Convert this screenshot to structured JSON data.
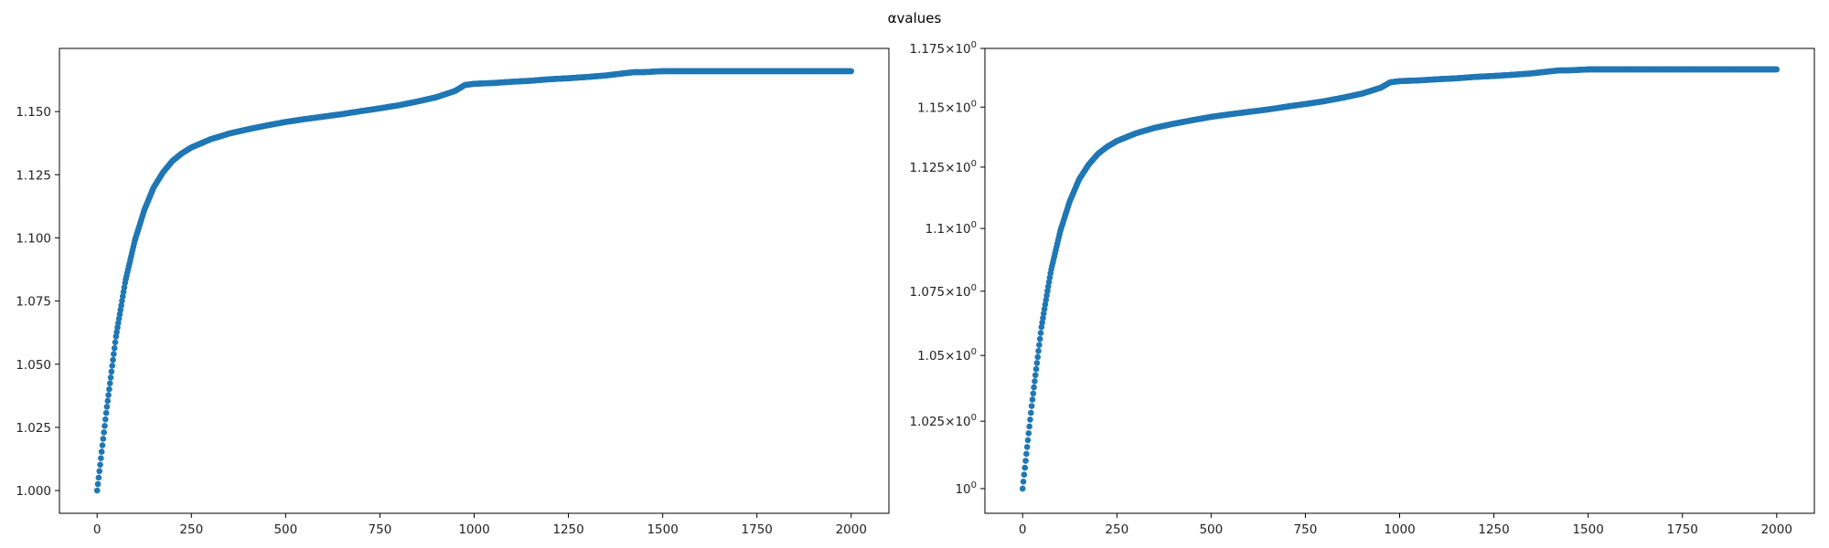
{
  "figure": {
    "title": "αvalues"
  },
  "chart_data": [
    {
      "type": "scatter",
      "title": "",
      "xlabel": "",
      "ylabel": "",
      "xscale": "linear",
      "yscale": "linear",
      "xlim": [
        -100,
        2100
      ],
      "ylim": [
        0.991,
        1.175
      ],
      "x_ticks": [
        0,
        250,
        500,
        750,
        1000,
        1250,
        1500,
        1750,
        2000
      ],
      "x_tick_labels": [
        "0",
        "250",
        "500",
        "750",
        "1000",
        "1250",
        "1500",
        "1750",
        "2000"
      ],
      "y_ticks": [
        1.0,
        1.025,
        1.05,
        1.075,
        1.1,
        1.125,
        1.15
      ],
      "y_tick_labels": [
        "1.000",
        "1.025",
        "1.050",
        "1.075",
        "1.100",
        "1.125",
        "1.150"
      ],
      "grid": false,
      "legend": "none",
      "color": "#1f77b4",
      "series": [
        {
          "x": [
            0,
            25,
            50,
            75,
            100,
            125,
            150,
            175,
            200,
            225,
            250,
            300,
            350,
            400,
            450,
            500,
            550,
            600,
            650,
            700,
            750,
            800,
            850,
            900,
            950,
            975,
            1000,
            1050,
            1100,
            1150,
            1200,
            1250,
            1300,
            1350,
            1400,
            1425,
            1450,
            1500,
            1550,
            1600,
            1700,
            1800,
            1900,
            2000
          ],
          "y": [
            1.0,
            1.032,
            1.061,
            1.083,
            1.099,
            1.111,
            1.12,
            1.126,
            1.1305,
            1.1335,
            1.1358,
            1.139,
            1.1413,
            1.143,
            1.1445,
            1.1459,
            1.147,
            1.148,
            1.149,
            1.1502,
            1.1513,
            1.1525,
            1.154,
            1.1557,
            1.1582,
            1.1605,
            1.161,
            1.1613,
            1.1618,
            1.1622,
            1.1628,
            1.1632,
            1.1637,
            1.1643,
            1.1652,
            1.1656,
            1.1656,
            1.166,
            1.166,
            1.166,
            1.166,
            1.166,
            1.166,
            1.166
          ]
        }
      ]
    },
    {
      "type": "scatter",
      "title": "",
      "xlabel": "",
      "ylabel": "",
      "xscale": "linear",
      "yscale": "log",
      "xlim": [
        -100,
        2100
      ],
      "ylim": [
        0.991,
        1.175
      ],
      "x_ticks": [
        0,
        250,
        500,
        750,
        1000,
        1250,
        1500,
        1750,
        2000
      ],
      "x_tick_labels": [
        "0",
        "250",
        "500",
        "750",
        "1000",
        "1250",
        "1500",
        "1750",
        "2000"
      ],
      "y_ticks": [
        1.0,
        1.025,
        1.05,
        1.075,
        1.1,
        1.125,
        1.15,
        1.175
      ],
      "y_tick_mantissas": [
        "",
        "1.025",
        "1.05",
        "1.075",
        "1.1",
        "1.125",
        "1.15",
        "1.175"
      ],
      "y_tick_base": "10",
      "y_tick_exponent": "0",
      "y_tick_times": "×",
      "grid": false,
      "legend": "none",
      "color": "#1f77b4",
      "series": [
        {
          "x": [
            0,
            25,
            50,
            75,
            100,
            125,
            150,
            175,
            200,
            225,
            250,
            300,
            350,
            400,
            450,
            500,
            550,
            600,
            650,
            700,
            750,
            800,
            850,
            900,
            950,
            975,
            1000,
            1050,
            1100,
            1150,
            1200,
            1250,
            1300,
            1350,
            1400,
            1425,
            1450,
            1500,
            1550,
            1600,
            1700,
            1800,
            1900,
            2000
          ],
          "y": [
            1.0,
            1.032,
            1.061,
            1.083,
            1.099,
            1.111,
            1.12,
            1.126,
            1.1305,
            1.1335,
            1.1358,
            1.139,
            1.1413,
            1.143,
            1.1445,
            1.1459,
            1.147,
            1.148,
            1.149,
            1.1502,
            1.1513,
            1.1525,
            1.154,
            1.1557,
            1.1582,
            1.1605,
            1.161,
            1.1613,
            1.1618,
            1.1622,
            1.1628,
            1.1632,
            1.1637,
            1.1643,
            1.1652,
            1.1656,
            1.1656,
            1.166,
            1.166,
            1.166,
            1.166,
            1.166,
            1.166,
            1.166
          ]
        }
      ]
    }
  ]
}
